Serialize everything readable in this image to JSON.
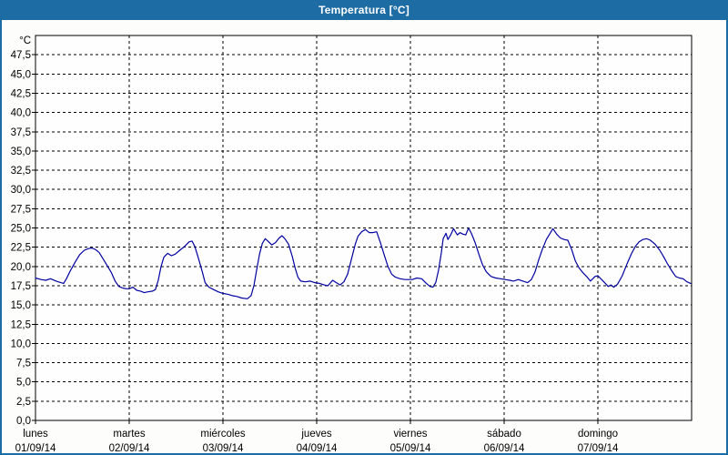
{
  "window": {
    "title": "Temperatura [°C]"
  },
  "colors": {
    "titlebar_bg": "#1e6ca4",
    "window_border": "#1e6ca4",
    "page_bg": "#fdfdfc",
    "plot_bg": "#fefefe",
    "grid": "#000000",
    "axis": "#000000",
    "line": "#0000a0",
    "title_text": "#ffffff",
    "label_text": "#000000"
  },
  "chart_data": {
    "type": "line",
    "title": "Temperatura [°C]",
    "xlabel": "",
    "ylabel": "°C",
    "grid": "dashed",
    "legend": "none",
    "y_axis": {
      "min": 0,
      "max": 50,
      "tick_step": 2.5,
      "first_tick_label": "0,0",
      "last_tick_label": "47,5",
      "unit": "°C",
      "decimal_separator": ","
    },
    "x_axis": {
      "days": [
        {
          "name": "lunes",
          "date": "01/09/14"
        },
        {
          "name": "martes",
          "date": "02/09/14"
        },
        {
          "name": "miércoles",
          "date": "03/09/14"
        },
        {
          "name": "jueves",
          "date": "04/09/14"
        },
        {
          "name": "viernes",
          "date": "05/09/14"
        },
        {
          "name": "sábado",
          "date": "06/09/14"
        },
        {
          "name": "domingo",
          "date": "07/09/14"
        }
      ]
    },
    "series": [
      {
        "name": "Temperatura",
        "color": "#0000a0",
        "points": [
          [
            0.0,
            18.5
          ],
          [
            0.06,
            18.3
          ],
          [
            0.11,
            18.2
          ],
          [
            0.16,
            18.4
          ],
          [
            0.22,
            18.1
          ],
          [
            0.27,
            17.9
          ],
          [
            0.3,
            17.8
          ],
          [
            0.33,
            18.4
          ],
          [
            0.37,
            19.4
          ],
          [
            0.42,
            20.5
          ],
          [
            0.47,
            21.5
          ],
          [
            0.52,
            22.1
          ],
          [
            0.56,
            22.3
          ],
          [
            0.6,
            22.4
          ],
          [
            0.64,
            22.2
          ],
          [
            0.68,
            21.8
          ],
          [
            0.72,
            21.0
          ],
          [
            0.77,
            20.0
          ],
          [
            0.81,
            19.2
          ],
          [
            0.85,
            18.1
          ],
          [
            0.89,
            17.4
          ],
          [
            0.93,
            17.2
          ],
          [
            0.97,
            17.1
          ],
          [
            1.0,
            17.1
          ],
          [
            1.04,
            17.3
          ],
          [
            1.08,
            16.9
          ],
          [
            1.12,
            16.8
          ],
          [
            1.16,
            16.6
          ],
          [
            1.2,
            16.7
          ],
          [
            1.25,
            16.8
          ],
          [
            1.28,
            17.0
          ],
          [
            1.31,
            18.2
          ],
          [
            1.34,
            20.0
          ],
          [
            1.37,
            21.2
          ],
          [
            1.41,
            21.7
          ],
          [
            1.45,
            21.4
          ],
          [
            1.49,
            21.6
          ],
          [
            1.54,
            22.1
          ],
          [
            1.59,
            22.6
          ],
          [
            1.64,
            23.2
          ],
          [
            1.67,
            23.3
          ],
          [
            1.7,
            22.6
          ],
          [
            1.74,
            21.0
          ],
          [
            1.78,
            19.3
          ],
          [
            1.81,
            17.9
          ],
          [
            1.85,
            17.3
          ],
          [
            1.9,
            17.0
          ],
          [
            1.95,
            16.7
          ],
          [
            2.0,
            16.5
          ],
          [
            2.05,
            16.4
          ],
          [
            2.1,
            16.2
          ],
          [
            2.15,
            16.1
          ],
          [
            2.2,
            15.9
          ],
          [
            2.26,
            15.8
          ],
          [
            2.3,
            16.2
          ],
          [
            2.33,
            17.5
          ],
          [
            2.36,
            19.6
          ],
          [
            2.39,
            21.6
          ],
          [
            2.42,
            23.0
          ],
          [
            2.45,
            23.6
          ],
          [
            2.48,
            23.3
          ],
          [
            2.52,
            22.8
          ],
          [
            2.56,
            23.1
          ],
          [
            2.6,
            23.7
          ],
          [
            2.63,
            24.0
          ],
          [
            2.66,
            23.6
          ],
          [
            2.7,
            22.9
          ],
          [
            2.74,
            21.3
          ],
          [
            2.77,
            19.8
          ],
          [
            2.8,
            18.6
          ],
          [
            2.83,
            18.1
          ],
          [
            2.88,
            18.0
          ],
          [
            2.93,
            18.1
          ],
          [
            2.98,
            17.9
          ],
          [
            3.03,
            17.8
          ],
          [
            3.08,
            17.6
          ],
          [
            3.12,
            17.5
          ],
          [
            3.17,
            18.2
          ],
          [
            3.21,
            17.9
          ],
          [
            3.25,
            17.6
          ],
          [
            3.29,
            18.0
          ],
          [
            3.33,
            19.0
          ],
          [
            3.37,
            20.9
          ],
          [
            3.41,
            22.8
          ],
          [
            3.44,
            23.9
          ],
          [
            3.48,
            24.5
          ],
          [
            3.52,
            24.8
          ],
          [
            3.56,
            24.4
          ],
          [
            3.6,
            24.4
          ],
          [
            3.64,
            24.5
          ],
          [
            3.68,
            23.1
          ],
          [
            3.72,
            21.5
          ],
          [
            3.76,
            20.0
          ],
          [
            3.8,
            19.0
          ],
          [
            3.84,
            18.6
          ],
          [
            3.89,
            18.4
          ],
          [
            3.94,
            18.3
          ],
          [
            3.98,
            18.3
          ],
          [
            4.02,
            18.3
          ],
          [
            4.07,
            18.5
          ],
          [
            4.12,
            18.4
          ],
          [
            4.17,
            17.8
          ],
          [
            4.21,
            17.4
          ],
          [
            4.24,
            17.3
          ],
          [
            4.27,
            17.9
          ],
          [
            4.3,
            19.5
          ],
          [
            4.33,
            21.8
          ],
          [
            4.35,
            23.6
          ],
          [
            4.38,
            24.3
          ],
          [
            4.4,
            23.5
          ],
          [
            4.43,
            24.1
          ],
          [
            4.46,
            24.9
          ],
          [
            4.5,
            24.1
          ],
          [
            4.53,
            24.4
          ],
          [
            4.56,
            24.2
          ],
          [
            4.59,
            24.1
          ],
          [
            4.62,
            25.0
          ],
          [
            4.65,
            24.3
          ],
          [
            4.69,
            23.1
          ],
          [
            4.73,
            21.6
          ],
          [
            4.77,
            20.2
          ],
          [
            4.81,
            19.3
          ],
          [
            4.86,
            18.7
          ],
          [
            4.91,
            18.5
          ],
          [
            4.96,
            18.4
          ],
          [
            5.01,
            18.3
          ],
          [
            5.06,
            18.2
          ],
          [
            5.1,
            18.1
          ],
          [
            5.15,
            18.3
          ],
          [
            5.2,
            18.1
          ],
          [
            5.25,
            17.9
          ],
          [
            5.29,
            18.3
          ],
          [
            5.33,
            19.3
          ],
          [
            5.37,
            20.9
          ],
          [
            5.41,
            22.3
          ],
          [
            5.45,
            23.5
          ],
          [
            5.49,
            24.3
          ],
          [
            5.52,
            24.9
          ],
          [
            5.56,
            24.2
          ],
          [
            5.6,
            23.7
          ],
          [
            5.64,
            23.5
          ],
          [
            5.68,
            23.4
          ],
          [
            5.72,
            22.2
          ],
          [
            5.76,
            20.7
          ],
          [
            5.8,
            19.8
          ],
          [
            5.84,
            19.2
          ],
          [
            5.88,
            18.7
          ],
          [
            5.92,
            18.1
          ],
          [
            5.97,
            18.7
          ],
          [
            6.0,
            18.8
          ],
          [
            6.04,
            18.3
          ],
          [
            6.08,
            17.8
          ],
          [
            6.11,
            17.4
          ],
          [
            6.14,
            17.6
          ],
          [
            6.17,
            17.3
          ],
          [
            6.21,
            17.7
          ],
          [
            6.26,
            18.8
          ],
          [
            6.31,
            20.3
          ],
          [
            6.36,
            21.7
          ],
          [
            6.4,
            22.6
          ],
          [
            6.44,
            23.2
          ],
          [
            6.48,
            23.5
          ],
          [
            6.52,
            23.6
          ],
          [
            6.56,
            23.4
          ],
          [
            6.61,
            22.9
          ],
          [
            6.66,
            22.1
          ],
          [
            6.7,
            21.3
          ],
          [
            6.74,
            20.4
          ],
          [
            6.79,
            19.4
          ],
          [
            6.83,
            18.7
          ],
          [
            6.87,
            18.5
          ],
          [
            6.91,
            18.4
          ],
          [
            6.95,
            18.0
          ],
          [
            6.99,
            17.8
          ]
        ]
      }
    ]
  }
}
